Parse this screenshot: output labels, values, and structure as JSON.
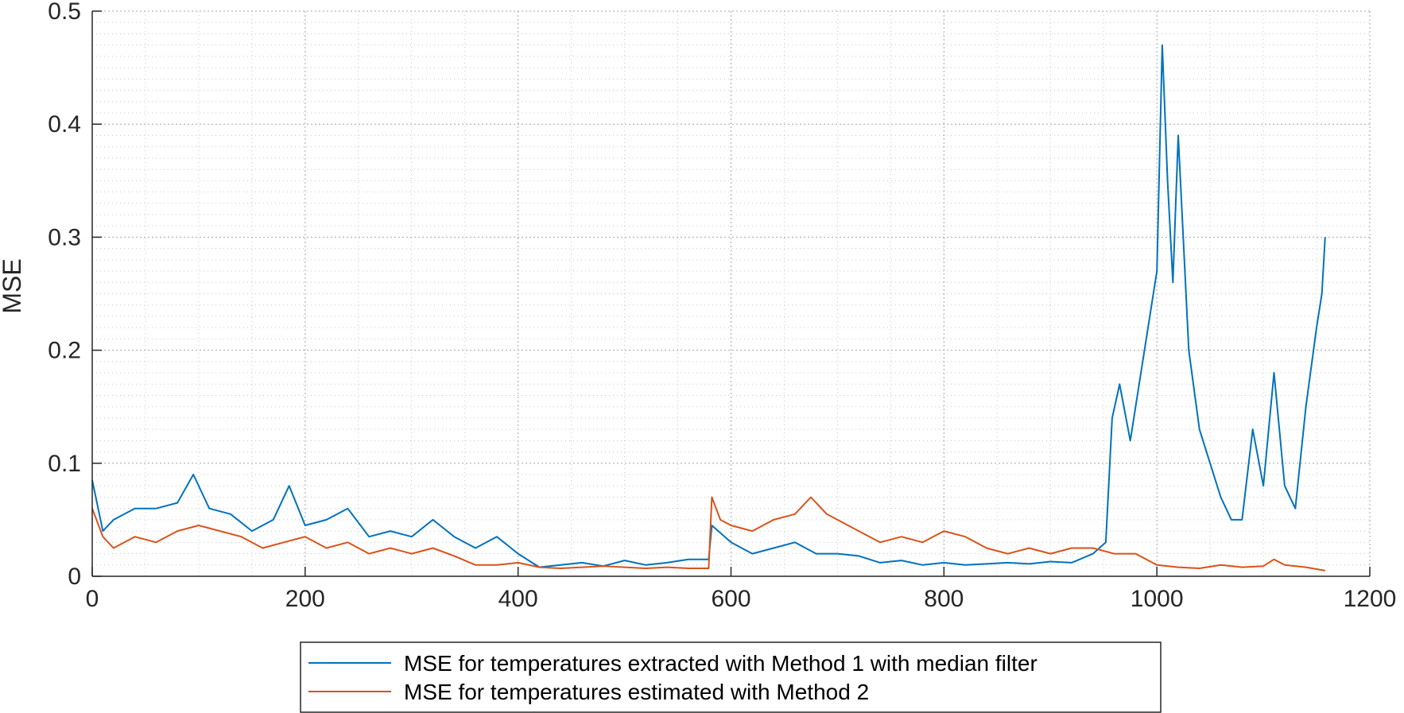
{
  "chart_data": {
    "type": "line",
    "title": "",
    "xlabel": "",
    "ylabel": "MSE",
    "xlim": [
      0,
      1200
    ],
    "ylim": [
      0,
      0.5
    ],
    "xticks": [
      0,
      200,
      400,
      600,
      800,
      1000,
      1200
    ],
    "yticks": [
      0,
      0.1,
      0.2,
      0.3,
      0.4,
      0.5
    ],
    "xtick_labels": [
      "0",
      "200",
      "400",
      "600",
      "800",
      "1000",
      "1200"
    ],
    "ytick_labels": [
      "0",
      "0.1",
      "0.2",
      "0.3",
      "0.4",
      "0.5"
    ],
    "grid": "major and minor, dotted",
    "legend_position": "bottom, outside",
    "series": [
      {
        "name": "MSE for temperatures extracted with Method 1 with median filter",
        "color": "#0072BD",
        "x": [
          0,
          10,
          20,
          40,
          60,
          80,
          95,
          110,
          130,
          150,
          170,
          185,
          200,
          220,
          240,
          260,
          280,
          300,
          320,
          340,
          360,
          380,
          400,
          420,
          440,
          460,
          480,
          500,
          520,
          540,
          560,
          579,
          582,
          600,
          620,
          640,
          660,
          680,
          700,
          720,
          740,
          760,
          780,
          800,
          820,
          840,
          860,
          880,
          900,
          920,
          940,
          952,
          958,
          965,
          975,
          985,
          995,
          1000,
          1005,
          1010,
          1015,
          1020,
          1030,
          1040,
          1050,
          1060,
          1070,
          1080,
          1090,
          1100,
          1110,
          1120,
          1130,
          1140,
          1150,
          1155,
          1158
        ],
        "y": [
          0.085,
          0.04,
          0.05,
          0.06,
          0.06,
          0.065,
          0.09,
          0.06,
          0.055,
          0.04,
          0.05,
          0.08,
          0.045,
          0.05,
          0.06,
          0.035,
          0.04,
          0.035,
          0.05,
          0.035,
          0.025,
          0.035,
          0.02,
          0.008,
          0.01,
          0.012,
          0.009,
          0.014,
          0.01,
          0.012,
          0.015,
          0.015,
          0.045,
          0.03,
          0.02,
          0.025,
          0.03,
          0.02,
          0.02,
          0.018,
          0.012,
          0.014,
          0.01,
          0.012,
          0.01,
          0.011,
          0.012,
          0.011,
          0.013,
          0.012,
          0.02,
          0.03,
          0.14,
          0.17,
          0.12,
          0.18,
          0.24,
          0.27,
          0.47,
          0.35,
          0.26,
          0.39,
          0.2,
          0.13,
          0.1,
          0.07,
          0.05,
          0.05,
          0.13,
          0.08,
          0.18,
          0.08,
          0.06,
          0.15,
          0.22,
          0.25,
          0.3
        ]
      },
      {
        "name": "MSE for temperatures estimated with Method 2",
        "color": "#D95319",
        "x": [
          0,
          10,
          20,
          40,
          60,
          80,
          100,
          120,
          140,
          160,
          180,
          200,
          220,
          240,
          260,
          280,
          300,
          320,
          340,
          360,
          380,
          400,
          420,
          440,
          460,
          480,
          500,
          520,
          540,
          560,
          579,
          582,
          590,
          600,
          620,
          640,
          660,
          675,
          690,
          700,
          720,
          740,
          760,
          780,
          800,
          820,
          840,
          860,
          880,
          900,
          920,
          940,
          960,
          980,
          1000,
          1020,
          1040,
          1060,
          1080,
          1100,
          1110,
          1120,
          1140,
          1158
        ],
        "y": [
          0.06,
          0.035,
          0.025,
          0.035,
          0.03,
          0.04,
          0.045,
          0.04,
          0.035,
          0.025,
          0.03,
          0.035,
          0.025,
          0.03,
          0.02,
          0.025,
          0.02,
          0.025,
          0.018,
          0.01,
          0.01,
          0.012,
          0.008,
          0.007,
          0.008,
          0.009,
          0.008,
          0.007,
          0.008,
          0.007,
          0.007,
          0.07,
          0.05,
          0.045,
          0.04,
          0.05,
          0.055,
          0.07,
          0.055,
          0.05,
          0.04,
          0.03,
          0.035,
          0.03,
          0.04,
          0.035,
          0.025,
          0.02,
          0.025,
          0.02,
          0.025,
          0.025,
          0.02,
          0.02,
          0.01,
          0.008,
          0.007,
          0.01,
          0.008,
          0.009,
          0.015,
          0.01,
          0.008,
          0.005
        ]
      }
    ]
  }
}
